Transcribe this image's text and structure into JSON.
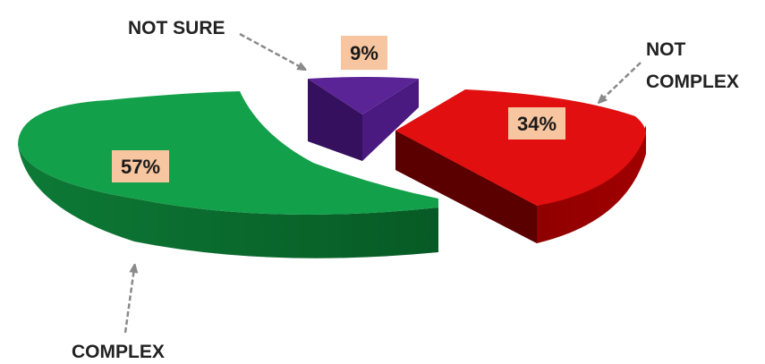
{
  "chart_data": {
    "type": "pie",
    "style": "3D exploded pie",
    "title": "",
    "slices": [
      {
        "label": "COMPLEX",
        "value": 57,
        "display": "57%",
        "color": "#13a04a",
        "dark": "#0a6a2e"
      },
      {
        "label": "NOT SURE",
        "value": 9,
        "display": "9%",
        "color": "#5a2496",
        "dark": "#34105e"
      },
      {
        "label": "NOT COMPLEX",
        "value": 34,
        "display": "34%",
        "color": "#e10f0f",
        "dark": "#6e0000"
      }
    ],
    "label_box_color": "#f7c59f",
    "arrow_color": "#8a8a8a",
    "legend": "none"
  }
}
